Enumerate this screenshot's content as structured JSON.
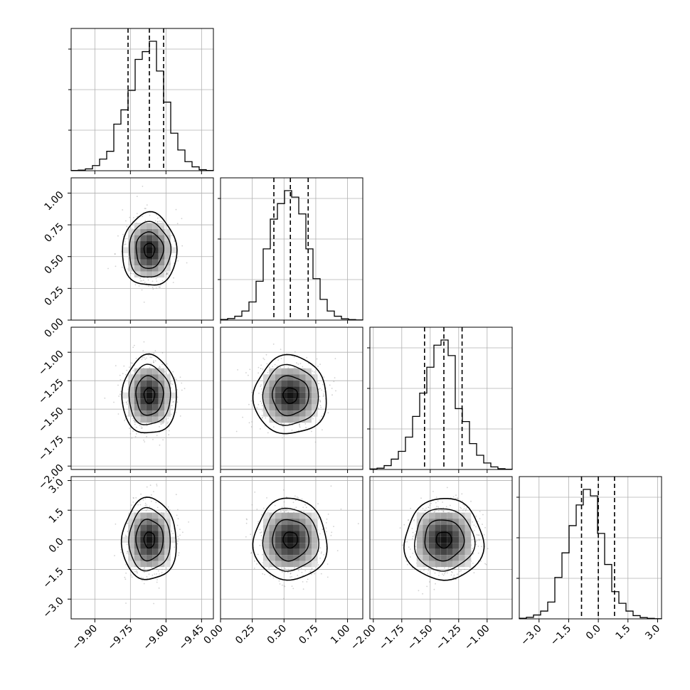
{
  "chart_data": {
    "type": "corner",
    "dims": 4,
    "grid": true,
    "hist_bins": 20,
    "colors": {
      "line": "#000000",
      "grid": "#b0b0b0",
      "scatter": "#9a9a9a"
    },
    "axes": [
      {
        "range": [
          -10.0,
          -9.4
        ],
        "ticks": [
          -9.9,
          -9.75,
          -9.6,
          -9.45
        ],
        "tick_labels": [
          "−9.90",
          "−9.75",
          "−9.60",
          "−9.45"
        ],
        "center": -9.67,
        "spread": 0.05
      },
      {
        "range": [
          0.0,
          1.12
        ],
        "ticks": [
          0.0,
          0.25,
          0.5,
          0.75,
          1.0
        ],
        "tick_labels": [
          "0.00",
          "0.25",
          "0.50",
          "0.75",
          "1.00"
        ],
        "center": 0.55,
        "spread": 0.125
      },
      {
        "range": [
          -2.03,
          -0.78
        ],
        "ticks": [
          -2.0,
          -1.75,
          -1.5,
          -1.25,
          -1.0
        ],
        "tick_labels": [
          "−2.00",
          "−1.75",
          "−1.50",
          "−1.25",
          "−1.00"
        ],
        "center": -1.38,
        "spread": 0.15
      },
      {
        "range": [
          -4.0,
          3.2
        ],
        "ticks": [
          -3.0,
          -1.5,
          0.0,
          1.5,
          3.0
        ],
        "tick_labels": [
          "−3.0",
          "−1.5",
          "0.0",
          "1.5",
          "3.0"
        ],
        "center": 0.0,
        "spread": 0.9
      }
    ],
    "quantiles": [
      [
        -9.76,
        -9.67,
        -9.61
      ],
      [
        0.42,
        0.55,
        0.69
      ],
      [
        -1.55,
        -1.38,
        -1.22
      ],
      [
        -0.85,
        0.0,
        0.82
      ]
    ],
    "histograms": [
      [
        0.002,
        0.005,
        0.014,
        0.04,
        0.09,
        0.15,
        0.36,
        0.47,
        0.62,
        0.86,
        0.92,
        1.0,
        0.77,
        0.53,
        0.29,
        0.16,
        0.07,
        0.03,
        0.008,
        0.002
      ],
      [
        0.005,
        0.012,
        0.03,
        0.07,
        0.14,
        0.3,
        0.55,
        0.78,
        0.9,
        1.0,
        0.95,
        0.82,
        0.55,
        0.32,
        0.16,
        0.07,
        0.03,
        0.01,
        0.004,
        0.001
      ],
      [
        0.004,
        0.01,
        0.03,
        0.08,
        0.14,
        0.25,
        0.41,
        0.59,
        0.79,
        0.96,
        1.0,
        0.88,
        0.47,
        0.37,
        0.2,
        0.11,
        0.05,
        0.02,
        0.006,
        0.002
      ],
      [
        0.005,
        0.012,
        0.03,
        0.06,
        0.13,
        0.32,
        0.51,
        0.72,
        0.88,
        1.0,
        0.95,
        0.66,
        0.42,
        0.21,
        0.12,
        0.06,
        0.025,
        0.01,
        0.004,
        0.001
      ]
    ]
  }
}
